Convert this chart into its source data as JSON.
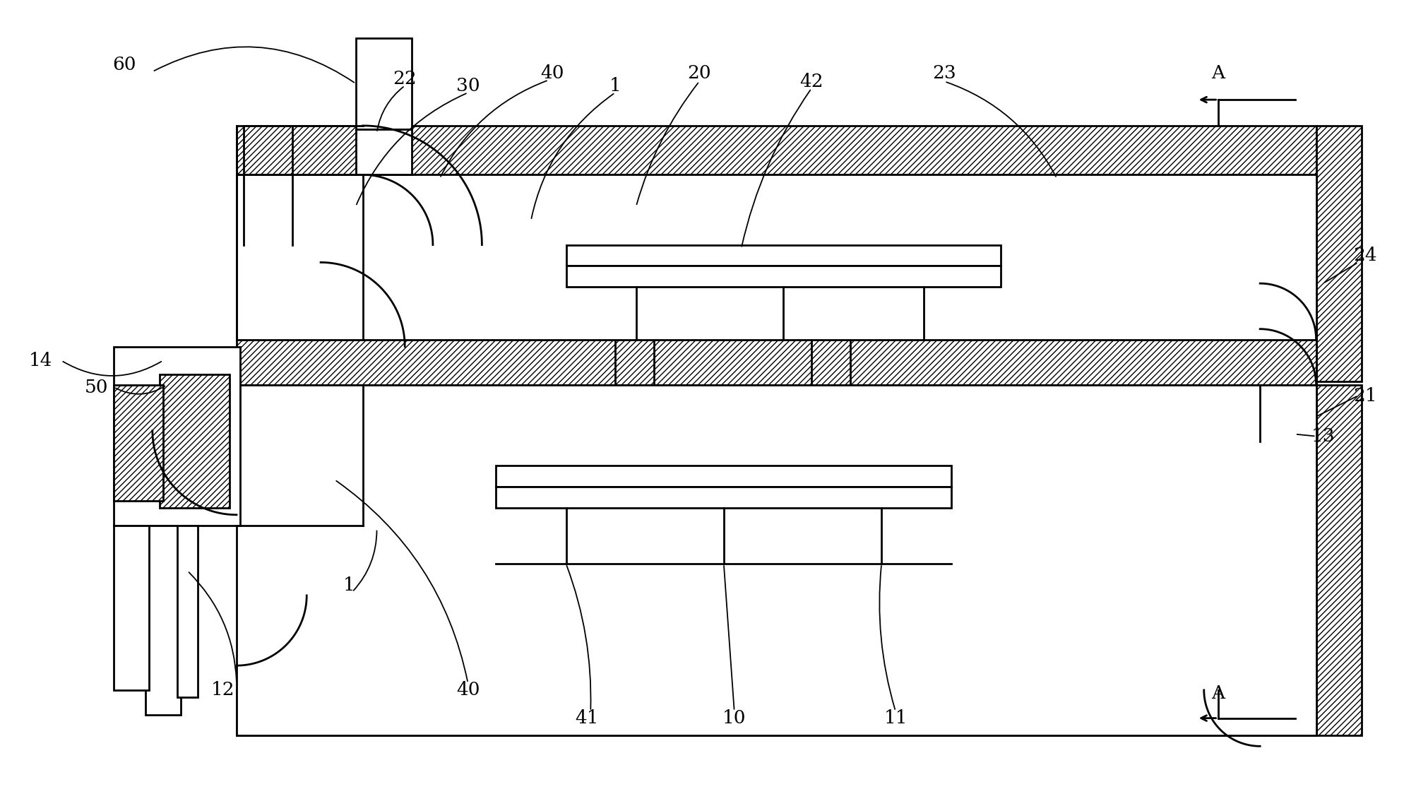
{
  "bg": "#ffffff",
  "lc": "#000000",
  "lw": 2.0,
  "lw_thin": 1.3,
  "fs": 19,
  "figsize": [
    20.06,
    11.24
  ],
  "dpi": 100,
  "hatch": "////",
  "labels": [
    [
      "60",
      170,
      88
    ],
    [
      "14",
      50,
      510
    ],
    [
      "22",
      570,
      108
    ],
    [
      "30",
      660,
      118
    ],
    [
      "40",
      780,
      100
    ],
    [
      "1",
      870,
      118
    ],
    [
      "20",
      990,
      100
    ],
    [
      "42",
      1150,
      112
    ],
    [
      "23",
      1340,
      100
    ],
    [
      "A",
      1730,
      100
    ],
    [
      "24",
      1940,
      360
    ],
    [
      "21",
      1940,
      560
    ],
    [
      "13",
      1880,
      618
    ],
    [
      "A",
      1730,
      985
    ],
    [
      "50",
      130,
      548
    ],
    [
      "12",
      310,
      980
    ],
    [
      "1",
      490,
      830
    ],
    [
      "40",
      660,
      980
    ],
    [
      "41",
      830,
      1020
    ],
    [
      "10",
      1040,
      1020
    ],
    [
      "11",
      1270,
      1020
    ]
  ]
}
